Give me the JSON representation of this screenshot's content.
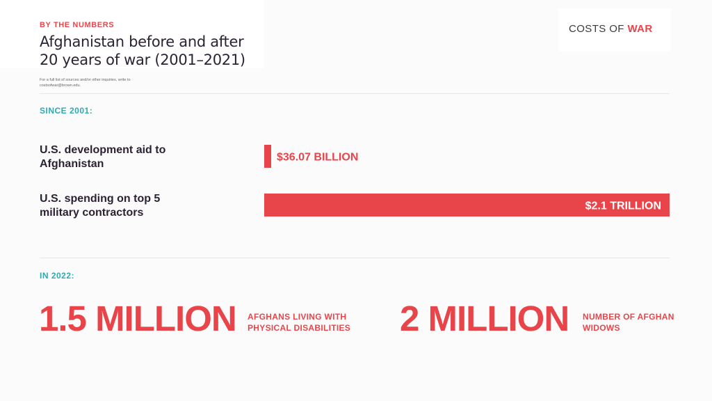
{
  "header": {
    "kicker": "BY THE NUMBERS",
    "title": "Afghanistan before and after 20 years of war (2001–2021)",
    "note": "For a full list of sources and/or other inquiries, write to costsofwar@brown.edu."
  },
  "logo": {
    "text_plain": "COSTS OF ",
    "text_accent": "WAR"
  },
  "colors": {
    "accent": "#e8454b",
    "teal": "#2eaab0",
    "dark": "#2b2233"
  },
  "sections": {
    "since": "SINCE 2001:",
    "in2022": "IN 2022:"
  },
  "chart_data": {
    "type": "bar",
    "orientation": "horizontal",
    "categories": [
      "U.S. development aid to Afghanistan",
      "U.S. spending on top 5 military contractors"
    ],
    "values": [
      36.07,
      2100
    ],
    "value_labels": [
      "$36.07 BILLION",
      "$2.1 TRILLION"
    ],
    "unit": "billion USD",
    "xlim": [
      0,
      2100
    ],
    "color": "#e8454b",
    "grid": false
  },
  "stats": [
    {
      "value": "1.5 MILLION",
      "description": "AFGHANS LIVING WITH PHYSICAL DISABILITIES"
    },
    {
      "value": "2 MILLION",
      "description": "NUMBER OF AFGHAN WIDOWS"
    }
  ]
}
